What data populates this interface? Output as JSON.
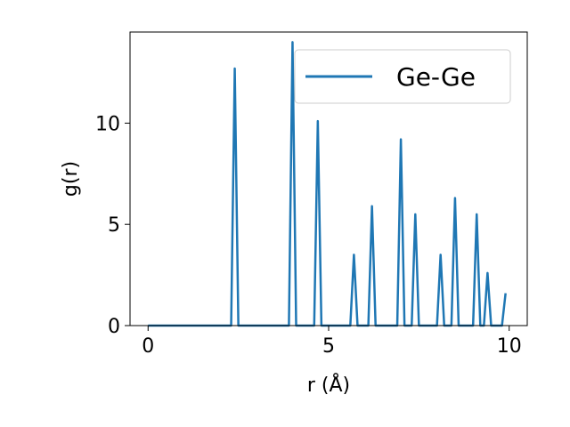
{
  "chart_data": {
    "type": "line",
    "title": "",
    "xlabel": "r (Å)",
    "ylabel": "g(r)",
    "xlim": [
      -0.5,
      10.5
    ],
    "ylim": [
      0,
      14.5
    ],
    "xticks": [
      0,
      5,
      10
    ],
    "yticks": [
      0,
      5,
      10
    ],
    "grid": false,
    "legend": {
      "placement": "top-right",
      "entries": [
        "Ge-Ge"
      ]
    },
    "series": [
      {
        "name": "Ge-Ge",
        "color": "#1f77b4",
        "x": [
          0.0,
          2.3,
          2.4,
          2.5,
          3.9,
          4.0,
          4.1,
          4.6,
          4.7,
          4.8,
          5.6,
          5.7,
          5.8,
          6.1,
          6.2,
          6.3,
          6.9,
          7.0,
          7.1,
          7.3,
          7.4,
          7.5,
          8.0,
          8.1,
          8.2,
          8.4,
          8.5,
          8.6,
          9.0,
          9.1,
          9.2,
          9.3,
          9.4,
          9.5,
          9.8,
          9.9
        ],
        "y": [
          0,
          0,
          12.7,
          0,
          0,
          14.0,
          0,
          0,
          10.1,
          0,
          0,
          3.5,
          0,
          0,
          5.9,
          0,
          0,
          9.2,
          0,
          0,
          5.5,
          0,
          0,
          3.5,
          0,
          0,
          6.3,
          0,
          0,
          5.5,
          0,
          0,
          2.6,
          0,
          0,
          1.6
        ]
      }
    ]
  }
}
